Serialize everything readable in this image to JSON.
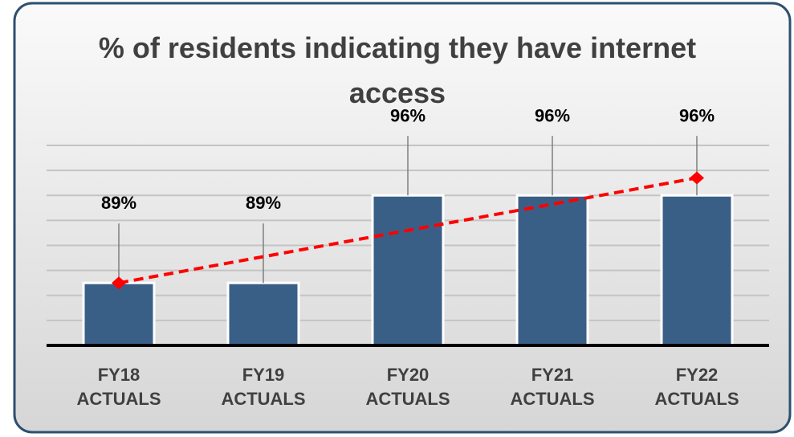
{
  "chart_data": {
    "type": "bar",
    "title": "% of residents indicating they have internet access",
    "categories": [
      "FY18 ACTUALS",
      "FY19 ACTUALS",
      "FY20 ACTUALS",
      "FY21 ACTUALS",
      "FY22 ACTUALS"
    ],
    "values": [
      89,
      89,
      96,
      96,
      96
    ],
    "value_labels": [
      "89%",
      "89%",
      "96%",
      "96%",
      "96%"
    ],
    "color": "#3a5f87",
    "ylim": [
      84,
      100
    ],
    "yticks": [
      84,
      86,
      88,
      90,
      92,
      94,
      96,
      98,
      100
    ],
    "grid": true,
    "tick_labels": false,
    "trendline": {
      "type": "linear",
      "color": "#ff0000"
    }
  }
}
